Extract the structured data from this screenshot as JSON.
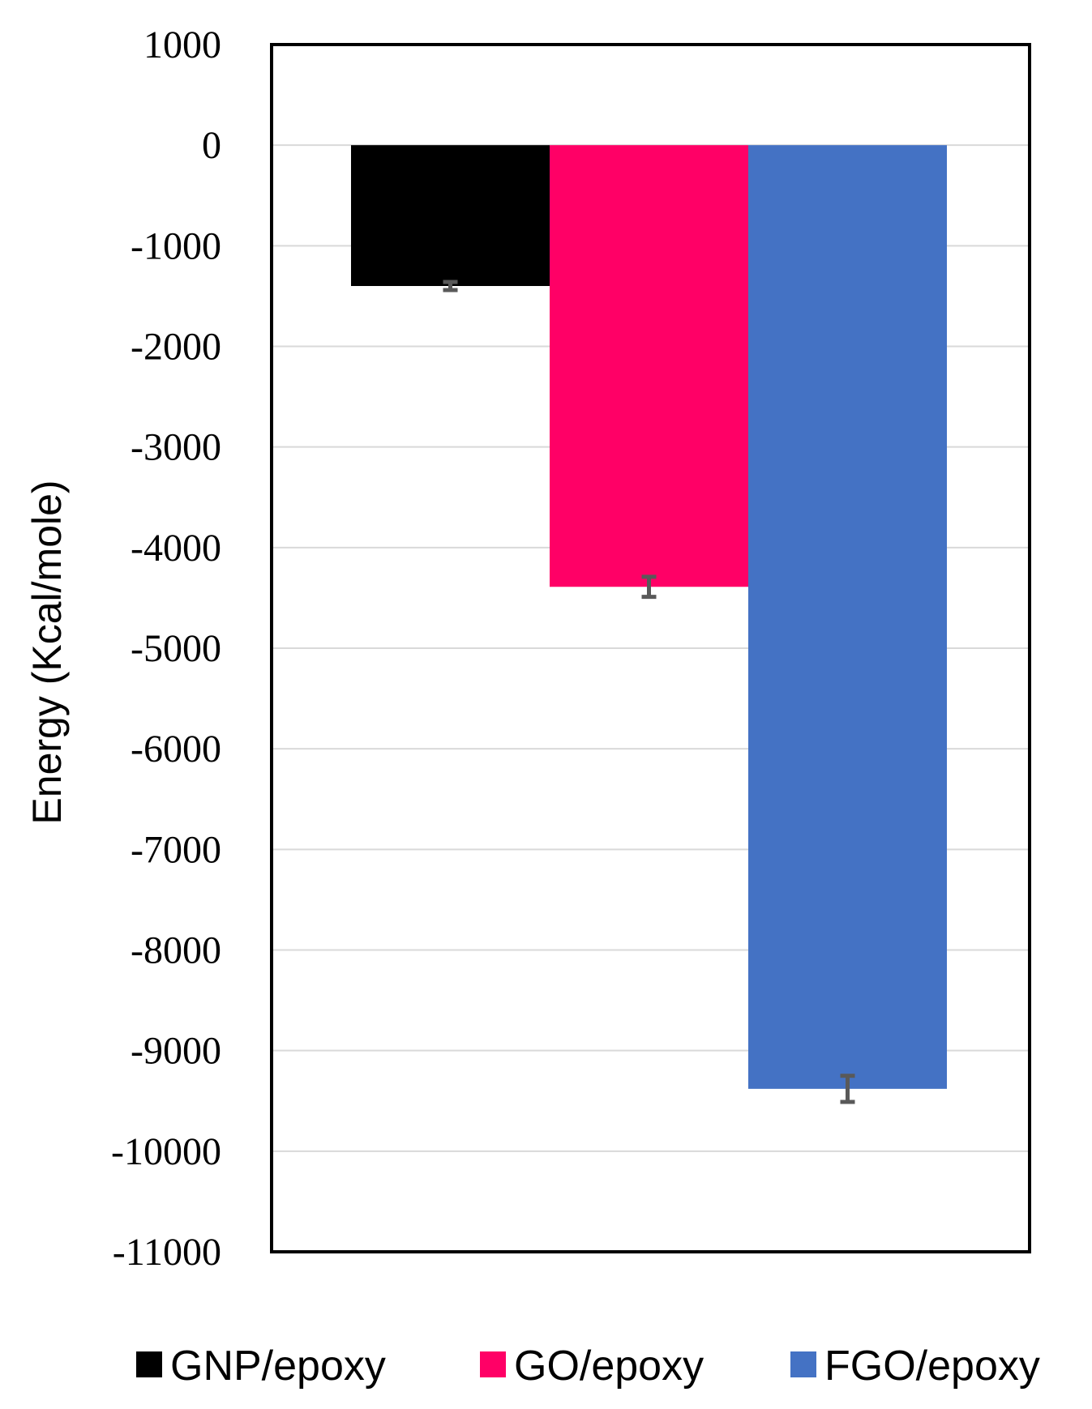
{
  "chart_data": {
    "type": "bar",
    "title": "",
    "xlabel": "",
    "ylabel": "Energy (Kcal/mole)",
    "ylim": [
      -11000,
      1000
    ],
    "yticks": [
      1000,
      0,
      -1000,
      -2000,
      -3000,
      -4000,
      -5000,
      -6000,
      -7000,
      -8000,
      -9000,
      -10000,
      -11000
    ],
    "grid": true,
    "legend_position": "bottom",
    "series": [
      {
        "name": "GNP/epoxy",
        "value": -1400,
        "error": 40,
        "color": "#000000"
      },
      {
        "name": "GO/epoxy",
        "value": -4390,
        "error": 100,
        "color": "#FF0066"
      },
      {
        "name": "FGO/epoxy",
        "value": -9380,
        "error": 130,
        "color": "#4472C4"
      }
    ]
  }
}
